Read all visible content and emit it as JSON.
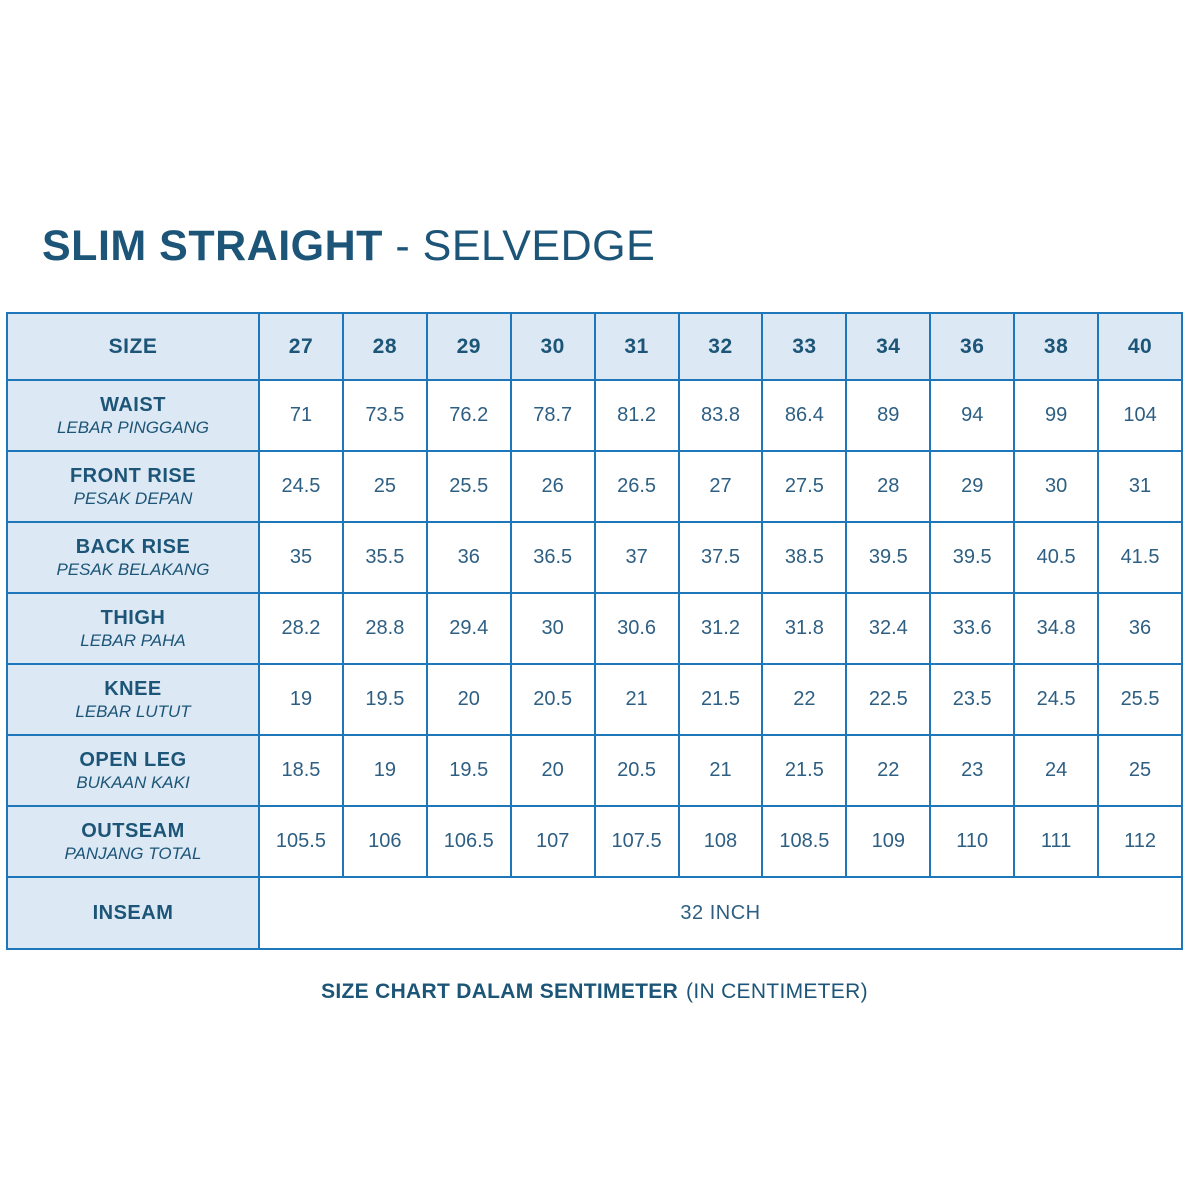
{
  "title": {
    "bold": "SLIM STRAIGHT",
    "regular": " - SELVEDGE"
  },
  "table": {
    "size_header": "SIZE",
    "sizes": [
      "27",
      "28",
      "29",
      "30",
      "31",
      "32",
      "33",
      "34",
      "36",
      "38",
      "40"
    ],
    "rows": [
      {
        "label": "WAIST",
        "sublabel": "LEBAR PINGGANG",
        "values": [
          "71",
          "73.5",
          "76.2",
          "78.7",
          "81.2",
          "83.8",
          "86.4",
          "89",
          "94",
          "99",
          "104"
        ]
      },
      {
        "label": "FRONT RISE",
        "sublabel": "PESAK DEPAN",
        "values": [
          "24.5",
          "25",
          "25.5",
          "26",
          "26.5",
          "27",
          "27.5",
          "28",
          "29",
          "30",
          "31"
        ]
      },
      {
        "label": "BACK RISE",
        "sublabel": "PESAK BELAKANG",
        "values": [
          "35",
          "35.5",
          "36",
          "36.5",
          "37",
          "37.5",
          "38.5",
          "39.5",
          "39.5",
          "40.5",
          "41.5"
        ]
      },
      {
        "label": "THIGH",
        "sublabel": "LEBAR PAHA",
        "values": [
          "28.2",
          "28.8",
          "29.4",
          "30",
          "30.6",
          "31.2",
          "31.8",
          "32.4",
          "33.6",
          "34.8",
          "36"
        ]
      },
      {
        "label": "KNEE",
        "sublabel": "LEBAR LUTUT",
        "values": [
          "19",
          "19.5",
          "20",
          "20.5",
          "21",
          "21.5",
          "22",
          "22.5",
          "23.5",
          "24.5",
          "25.5"
        ]
      },
      {
        "label": "OPEN LEG",
        "sublabel": "BUKAAN KAKI",
        "values": [
          "18.5",
          "19",
          "19.5",
          "20",
          "20.5",
          "21",
          "21.5",
          "22",
          "23",
          "24",
          "25"
        ]
      },
      {
        "label": "OUTSEAM",
        "sublabel": "PANJANG TOTAL",
        "values": [
          "105.5",
          "106",
          "106.5",
          "107",
          "107.5",
          "108",
          "108.5",
          "109",
          "110",
          "111",
          "112"
        ]
      }
    ],
    "inseam": {
      "label": "INSEAM",
      "value": "32 INCH"
    }
  },
  "footer": {
    "bold": "SIZE CHART DALAM SENTIMETER",
    "regular": "(IN CENTIMETER)"
  },
  "colors": {
    "text_dark_blue": "#1c5577",
    "value_blue": "#2e5f83",
    "border_blue": "#1e76bb",
    "cell_light_blue": "#dce8f3",
    "background": "#ffffff"
  }
}
